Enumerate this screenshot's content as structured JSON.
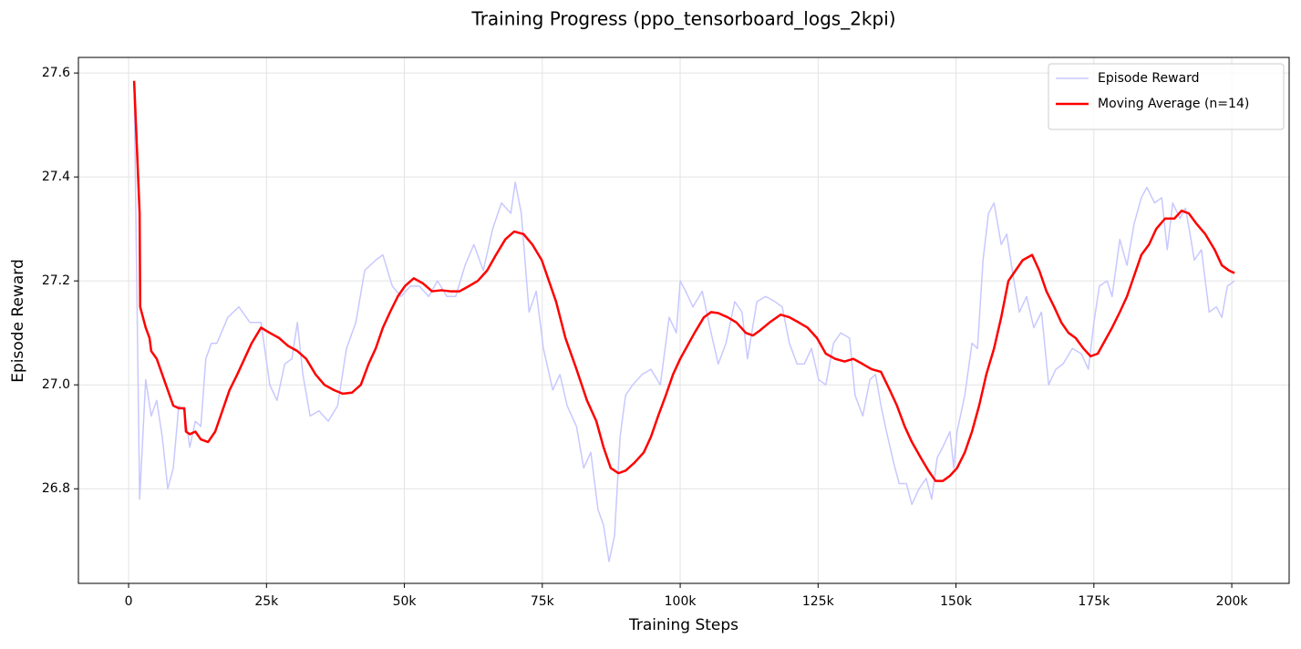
{
  "chart_data": {
    "type": "line",
    "title": "Training Progress (ppo_tensorboard_logs_2kpi)",
    "xlabel": "Training Steps",
    "ylabel": "Episode Reward",
    "xlim": [
      -9100,
      210400
    ],
    "ylim": [
      26.618,
      27.63
    ],
    "xticks": [
      0,
      {
        "value": 25000,
        "label": "25k"
      },
      {
        "value": 50000,
        "label": "50k"
      },
      {
        "value": 75000,
        "label": "75k"
      },
      {
        "value": 100000,
        "label": "100k"
      },
      {
        "value": 125000,
        "label": "125k"
      },
      {
        "value": 150000,
        "label": "150k"
      },
      {
        "value": 175000,
        "label": "175k"
      },
      {
        "value": 200000,
        "label": "200k"
      }
    ],
    "yticks": [
      26.8,
      {
        "value": 27,
        "label": "27.0"
      },
      27.2,
      27.4,
      27.6
    ],
    "grid": true,
    "legend": "upper right",
    "series": [
      {
        "name": "Episode Reward",
        "color": "#c8c8ff",
        "width": 1.5,
        "x": [
          1000,
          2000,
          3100,
          4100,
          5100,
          6100,
          7100,
          8100,
          9100,
          10100,
          11100,
          12100,
          13100,
          14000,
          15000,
          16000,
          18000,
          20000,
          22000,
          24000,
          25600,
          26900,
          28300,
          29600,
          30600,
          31600,
          32900,
          34500,
          36200,
          37900,
          39500,
          41200,
          42800,
          44800,
          46100,
          47800,
          49400,
          51100,
          52700,
          54400,
          56000,
          57700,
          59300,
          61000,
          62600,
          64300,
          66000,
          67600,
          69300,
          70100,
          71200,
          72600,
          73900,
          75200,
          76900,
          78200,
          79500,
          81200,
          82500,
          83800,
          85100,
          86100,
          87100,
          88100,
          89100,
          90100,
          91400,
          93100,
          94700,
          96400,
          98000,
          99300,
          100000,
          101000,
          102300,
          104000,
          105600,
          106900,
          108300,
          109900,
          111200,
          112200,
          113900,
          115500,
          117200,
          118500,
          119800,
          121200,
          122500,
          123800,
          125100,
          126400,
          127800,
          129100,
          130700,
          131700,
          133100,
          134400,
          135400,
          136400,
          137400,
          138700,
          139700,
          141000,
          142000,
          143300,
          144600,
          145600,
          146600,
          147600,
          148900,
          149600,
          150200,
          151600,
          152900,
          153900,
          154900,
          155900,
          156900,
          158200,
          159200,
          160500,
          161500,
          162800,
          164100,
          165500,
          166800,
          168100,
          169400,
          171100,
          172700,
          174000,
          175000,
          176000,
          177400,
          178300,
          179700,
          181000,
          182300,
          183600,
          184600,
          186000,
          187300,
          188300,
          189300,
          190600,
          191600,
          192600,
          193200,
          194500,
          195900,
          197200,
          198200,
          199200,
          200500
        ],
        "values": [
          27.58,
          26.78,
          27.01,
          26.94,
          26.97,
          26.9,
          26.8,
          26.84,
          26.96,
          26.95,
          26.88,
          26.93,
          26.92,
          27.05,
          27.08,
          27.08,
          27.13,
          27.15,
          27.12,
          27.12,
          27.0,
          26.97,
          27.04,
          27.05,
          27.12,
          27.02,
          26.94,
          26.95,
          26.93,
          26.96,
          27.07,
          27.12,
          27.22,
          27.24,
          27.25,
          27.19,
          27.17,
          27.19,
          27.19,
          27.17,
          27.2,
          27.17,
          27.17,
          27.23,
          27.27,
          27.22,
          27.3,
          27.35,
          27.33,
          27.39,
          27.33,
          27.14,
          27.18,
          27.07,
          26.99,
          27.02,
          26.96,
          26.92,
          26.84,
          26.87,
          26.76,
          26.73,
          26.66,
          26.71,
          26.9,
          26.98,
          27.0,
          27.02,
          27.03,
          27.0,
          27.13,
          27.1,
          27.2,
          27.18,
          27.15,
          27.18,
          27.1,
          27.04,
          27.08,
          27.16,
          27.14,
          27.05,
          27.16,
          27.17,
          27.16,
          27.15,
          27.08,
          27.04,
          27.04,
          27.07,
          27.01,
          27.0,
          27.08,
          27.1,
          27.09,
          26.98,
          26.94,
          27.01,
          27.02,
          26.96,
          26.91,
          26.85,
          26.81,
          26.81,
          26.77,
          26.8,
          26.82,
          26.78,
          26.86,
          26.88,
          26.91,
          26.84,
          26.91,
          26.98,
          27.08,
          27.07,
          27.24,
          27.33,
          27.35,
          27.27,
          27.29,
          27.2,
          27.14,
          27.17,
          27.11,
          27.14,
          27.0,
          27.03,
          27.04,
          27.07,
          27.06,
          27.03,
          27.12,
          27.19,
          27.2,
          27.17,
          27.28,
          27.23,
          27.31,
          27.36,
          27.38,
          27.35,
          27.36,
          27.26,
          27.35,
          27.32,
          27.34,
          27.28,
          27.24,
          27.26,
          27.14,
          27.15,
          27.13,
          27.19,
          27.2
        ]
      },
      {
        "name": "Moving Average (n=14)",
        "color": "#ff0000",
        "width": 2.5,
        "x": [
          1000,
          2000,
          2100,
          3100,
          3800,
          4100,
          5100,
          6100,
          7100,
          8100,
          9100,
          10100,
          10400,
          11100,
          12100,
          13100,
          14400,
          15700,
          17000,
          18300,
          19700,
          21000,
          22300,
          24000,
          25600,
          27300,
          28900,
          30600,
          32200,
          33900,
          35500,
          37200,
          38800,
          40500,
          42100,
          43500,
          44800,
          46100,
          47400,
          48800,
          50100,
          51700,
          53400,
          55000,
          56700,
          58300,
          60000,
          61700,
          63300,
          65000,
          66600,
          68300,
          69900,
          71600,
          73200,
          74900,
          76200,
          77500,
          79200,
          81200,
          83100,
          84800,
          86100,
          87400,
          88800,
          90100,
          91700,
          93400,
          94700,
          96000,
          97400,
          98700,
          100000,
          101300,
          102600,
          104300,
          105600,
          106900,
          108600,
          110200,
          111900,
          113200,
          114500,
          116200,
          118200,
          119800,
          121500,
          123100,
          124800,
          126400,
          128100,
          129800,
          131400,
          133100,
          134700,
          136400,
          138000,
          139300,
          140700,
          142000,
          143600,
          145000,
          146300,
          147600,
          148900,
          150200,
          151600,
          152900,
          154200,
          155500,
          156900,
          158200,
          159500,
          160800,
          162100,
          163800,
          165100,
          166400,
          167800,
          169100,
          170400,
          171700,
          173100,
          174400,
          175700,
          177000,
          178300,
          179700,
          181000,
          182300,
          183600,
          185000,
          186300,
          187900,
          189600,
          190900,
          192200,
          193600,
          195200,
          196900,
          198200,
          199500,
          200500
        ],
        "values": [
          27.585,
          27.33,
          27.15,
          27.11,
          27.09,
          27.065,
          27.05,
          27.02,
          26.99,
          26.96,
          26.955,
          26.955,
          26.91,
          26.905,
          26.91,
          26.895,
          26.89,
          26.91,
          26.95,
          26.99,
          27.02,
          27.05,
          27.08,
          27.11,
          27.1,
          27.09,
          27.075,
          27.065,
          27.05,
          27.02,
          27.0,
          26.99,
          26.983,
          26.985,
          27.0,
          27.04,
          27.07,
          27.11,
          27.14,
          27.17,
          27.19,
          27.205,
          27.195,
          27.18,
          27.182,
          27.18,
          27.18,
          27.19,
          27.2,
          27.22,
          27.25,
          27.28,
          27.295,
          27.29,
          27.27,
          27.24,
          27.2,
          27.16,
          27.09,
          27.03,
          26.97,
          26.93,
          26.88,
          26.84,
          26.83,
          26.835,
          26.85,
          26.87,
          26.9,
          26.94,
          26.98,
          27.02,
          27.05,
          27.075,
          27.1,
          27.13,
          27.14,
          27.138,
          27.13,
          27.12,
          27.1,
          27.095,
          27.105,
          27.12,
          27.135,
          27.13,
          27.12,
          27.11,
          27.09,
          27.06,
          27.05,
          27.045,
          27.05,
          27.04,
          27.03,
          27.025,
          26.99,
          26.96,
          26.92,
          26.89,
          26.86,
          26.835,
          26.815,
          26.815,
          26.825,
          26.84,
          26.87,
          26.91,
          26.96,
          27.02,
          27.07,
          27.13,
          27.2,
          27.22,
          27.24,
          27.25,
          27.22,
          27.18,
          27.15,
          27.12,
          27.1,
          27.09,
          27.07,
          27.055,
          27.06,
          27.085,
          27.11,
          27.14,
          27.17,
          27.21,
          27.25,
          27.27,
          27.3,
          27.32,
          27.32,
          27.335,
          27.33,
          27.31,
          27.29,
          27.26,
          27.23,
          27.22,
          27.215
        ]
      }
    ]
  }
}
